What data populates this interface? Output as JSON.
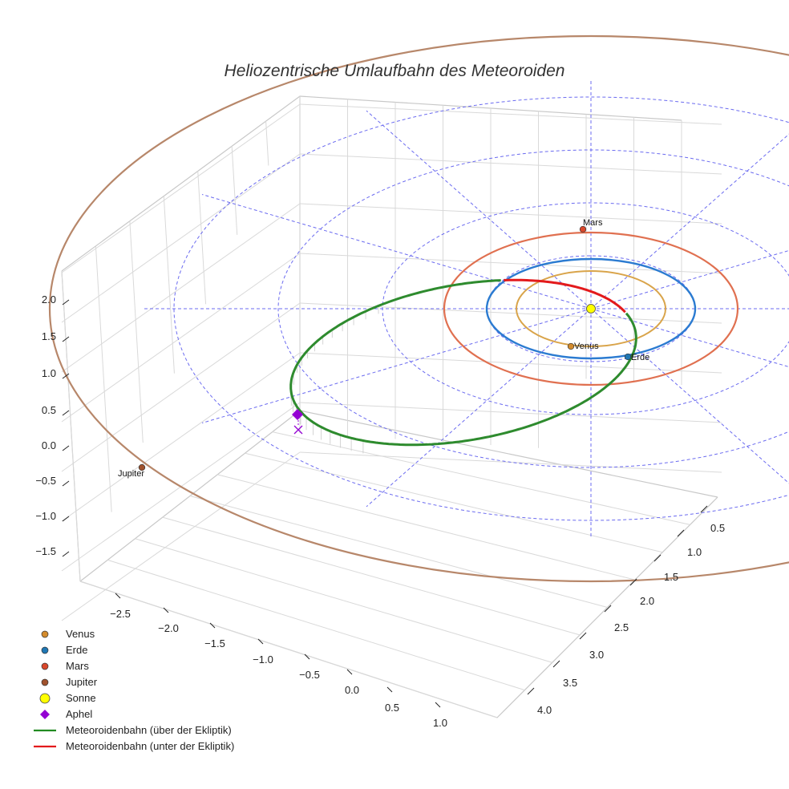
{
  "chart_data": {
    "type": "line",
    "projection": "3d",
    "title": "Heliozentrische Umlaufbahn des Meteoroiden",
    "z_ticks": [
      "2.0",
      "1.5",
      "1.0",
      "0.5",
      "0.0",
      "−0.5",
      "−1.0",
      "−1.5"
    ],
    "x_ticks": [
      "−2.5",
      "−2.0",
      "−1.5",
      "−1.0",
      "−0.5",
      "0.0",
      "0.5",
      "1.0"
    ],
    "y_ticks": [
      "0.5",
      "1.0",
      "1.5",
      "2.0",
      "2.5",
      "3.0",
      "3.5",
      "4.0"
    ],
    "planets": [
      {
        "name": "Venus",
        "label": "Venus",
        "color": "#d38b2c",
        "orbit_color": "#d9a44a",
        "orbit_radius_au": 0.72
      },
      {
        "name": "Erde",
        "label": "Erde",
        "color": "#1f77b4",
        "orbit_color": "#2b7bd1",
        "orbit_radius_au": 1.0
      },
      {
        "name": "Mars",
        "label": "Mars",
        "color": "#d9482b",
        "orbit_color": "#e07050",
        "orbit_radius_au": 1.52
      },
      {
        "name": "Jupiter",
        "label": "Jupiter",
        "color": "#a0522d",
        "orbit_color": "#b7876a",
        "orbit_radius_au": 5.2
      }
    ],
    "series": [
      {
        "name": "Meteoroidenbahn (über der Ekliptik)",
        "color": "#2e8b2e"
      },
      {
        "name": "Meteoroidenbahn (unter der Ekliptik)",
        "color": "#e31a1c"
      }
    ],
    "legend": [
      {
        "label": "Venus",
        "marker": "circle",
        "color": "#d38b2c"
      },
      {
        "label": "Erde",
        "marker": "circle",
        "color": "#1f77b4"
      },
      {
        "label": "Mars",
        "marker": "circle",
        "color": "#d9482b"
      },
      {
        "label": "Jupiter",
        "marker": "circle",
        "color": "#a0522d"
      },
      {
        "label": "Sonne",
        "marker": "big-circle",
        "color": "#ffff00"
      },
      {
        "label": "Aphel",
        "marker": "diamond",
        "color": "#9400d3"
      },
      {
        "label": "Meteoroidenbahn (über der Ekliptik)",
        "marker": "line",
        "color": "#228b22"
      },
      {
        "label": "Meteoroidenbahn (unter der Ekliptik)",
        "marker": "line",
        "color": "#e31a1c"
      }
    ],
    "sun": {
      "label": "Sonne",
      "color": "#ffff00"
    },
    "aphel": {
      "label": "Aphel",
      "color": "#9400d3"
    },
    "legend_position": "bottom-left"
  }
}
